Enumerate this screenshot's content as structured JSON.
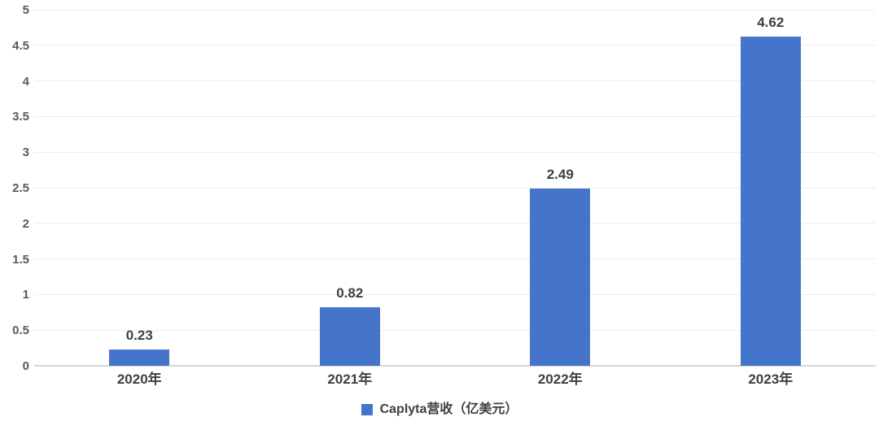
{
  "chart_data": {
    "type": "bar",
    "title": "",
    "categories": [
      "2020年",
      "2021年",
      "2022年",
      "2023年"
    ],
    "values": [
      0.23,
      0.82,
      2.49,
      4.62
    ],
    "value_labels": [
      "0.23",
      "0.82",
      "2.49",
      "4.62"
    ],
    "series_name": "Caplyta营收（亿美元）",
    "xlabel": "",
    "ylabel": "",
    "ylim": [
      0,
      5
    ],
    "ytick_step": 0.5,
    "ytick_labels": [
      "0",
      "0.5",
      "1",
      "1.5",
      "2",
      "2.5",
      "3",
      "3.5",
      "4",
      "4.5",
      "5"
    ],
    "grid": true,
    "legend_position": "bottom",
    "colors": {
      "bar": "#4575cb",
      "value_label_text": "#3f3f3f",
      "axis_tick_text": "#595959",
      "gridline": "#ececec",
      "axis_line": "#d6d6d6"
    }
  }
}
